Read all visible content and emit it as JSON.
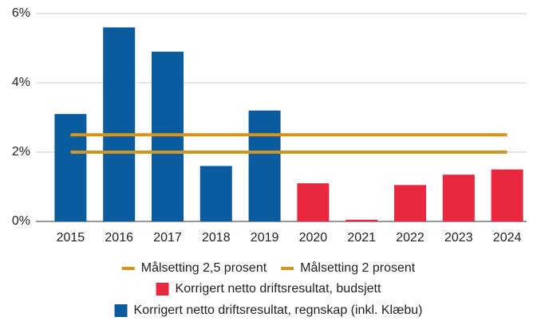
{
  "chart_data": {
    "type": "bar",
    "categories": [
      "2015",
      "2016",
      "2017",
      "2018",
      "2019",
      "2020",
      "2021",
      "2022",
      "2023",
      "2024"
    ],
    "series": [
      {
        "name": "Målsetting 2,5 prosent",
        "type": "line",
        "color": "#d4951e",
        "values": [
          2.5,
          2.5,
          2.5,
          2.5,
          2.5,
          2.5,
          2.5,
          2.5,
          2.5,
          2.5
        ]
      },
      {
        "name": "Målsetting 2 prosent",
        "type": "line",
        "color": "#d4951e",
        "values": [
          2,
          2,
          2,
          2,
          2,
          2,
          2,
          2,
          2,
          2
        ]
      },
      {
        "name": "Korrigert netto driftsresultat, budsjett",
        "type": "bar",
        "color": "#e8283e",
        "values": [
          null,
          null,
          null,
          null,
          null,
          1.1,
          0.05,
          1.05,
          1.35,
          1.5
        ]
      },
      {
        "name": "Korrigert netto driftsresultat, regnskap (inkl. Klæbu)",
        "type": "bar",
        "color": "#0b5c9e",
        "values": [
          3.1,
          5.6,
          4.9,
          1.6,
          3.2,
          null,
          null,
          null,
          null,
          null
        ]
      }
    ],
    "ylim": [
      0,
      6
    ],
    "yticks": [
      {
        "value": 0,
        "label": "0%"
      },
      {
        "value": 2,
        "label": "2%"
      },
      {
        "value": 4,
        "label": "4%"
      },
      {
        "value": 6,
        "label": "6%"
      }
    ],
    "grid": true
  }
}
